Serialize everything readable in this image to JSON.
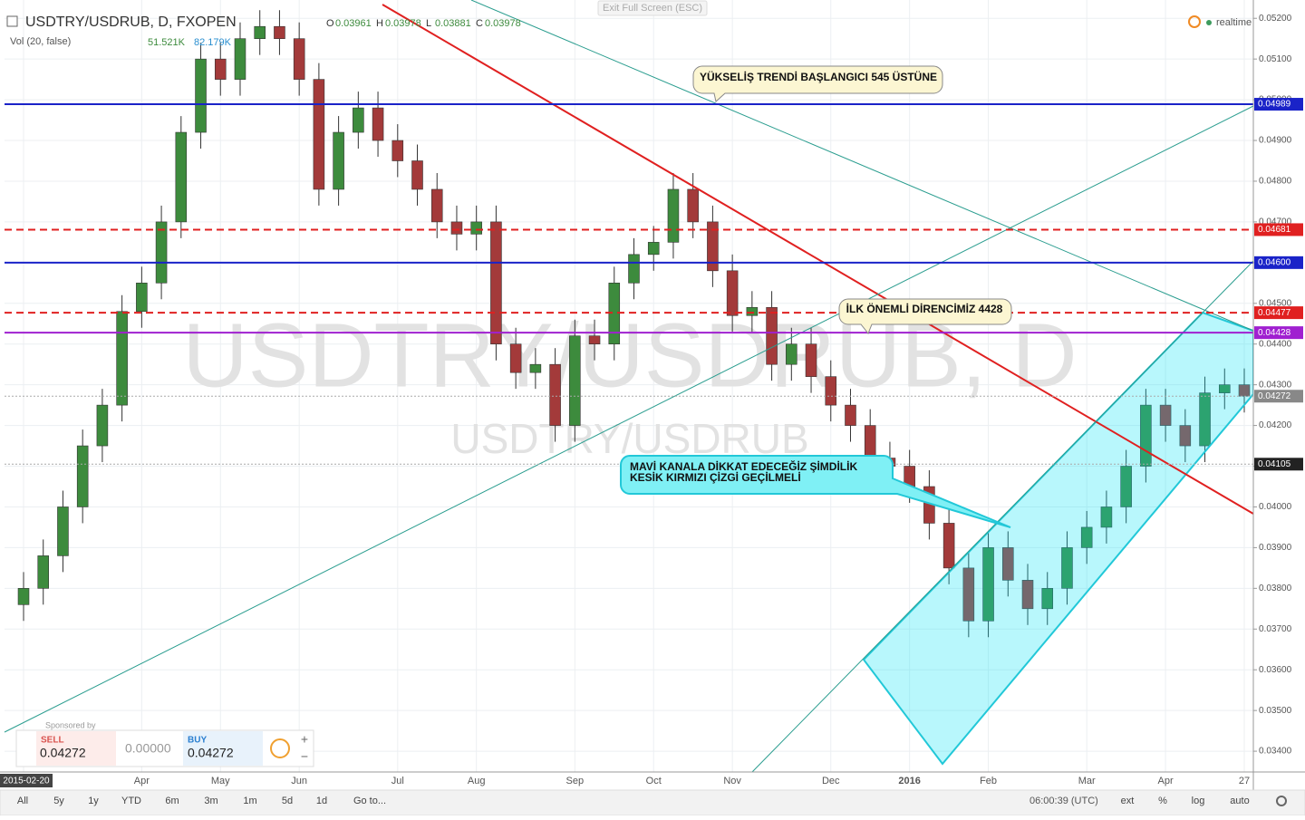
{
  "chart_data": {
    "type": "candlestick",
    "title": "USDTRY/USDRUB, D, FXOPEN",
    "ohlc_readout": [
      {
        "label": "O",
        "value": "0.03961"
      },
      {
        "label": "H",
        "value": "0.03978"
      },
      {
        "label": "L",
        "value": "0.03881"
      },
      {
        "label": "C",
        "value": "0.03978"
      }
    ],
    "volume_label": "Vol (20, false)",
    "volume_readout": [
      "51.521K",
      "82.179K"
    ],
    "watermark": "USDTRY/USDRUB, D",
    "watermark_sub": "USDTRY/USDRUB",
    "categories": [
      "2015-02-20",
      null,
      null,
      null,
      null,
      null,
      "Apr",
      null,
      null,
      null,
      "May",
      null,
      null,
      null,
      "Jun",
      null,
      null,
      null,
      null,
      "Jul",
      null,
      null,
      null,
      "Aug",
      null,
      null,
      null,
      null,
      "Sep",
      null,
      null,
      null,
      "Oct",
      null,
      null,
      null,
      "Nov",
      null,
      null,
      null,
      null,
      "Dec",
      null,
      null,
      null,
      "2016",
      null,
      null,
      null,
      "Feb",
      null,
      null,
      null,
      null,
      "Mar",
      null,
      null,
      null,
      "Apr",
      null,
      null,
      null,
      "27"
    ],
    "open": [
      0.0376,
      0.038,
      0.0388,
      0.04,
      0.0415,
      0.0425,
      0.0448,
      0.0455,
      0.047,
      0.0492,
      0.051,
      0.0505,
      0.0515,
      0.0518,
      0.0515,
      0.0505,
      0.0478,
      0.0492,
      0.0498,
      0.049,
      0.0485,
      0.0478,
      0.047,
      0.0467,
      0.047,
      0.044,
      0.0433,
      0.0435,
      0.042,
      0.0442,
      0.044,
      0.0455,
      0.0462,
      0.0465,
      0.0478,
      0.047,
      0.0458,
      0.0447,
      0.0449,
      0.0435,
      0.044,
      0.0432,
      0.0425,
      0.042,
      0.0412,
      0.041,
      0.0405,
      0.0396,
      0.0385,
      0.0372,
      0.039,
      0.0382,
      0.0375,
      0.038,
      0.039,
      0.0395,
      0.04,
      0.041,
      0.0425,
      0.042,
      0.0415,
      0.0428,
      0.043
    ],
    "high": [
      0.0384,
      0.0392,
      0.0404,
      0.0419,
      0.0429,
      0.0452,
      0.0459,
      0.0474,
      0.0496,
      0.0514,
      0.0514,
      0.0519,
      0.0522,
      0.0522,
      0.0519,
      0.0509,
      0.0496,
      0.0502,
      0.0502,
      0.0494,
      0.0489,
      0.0482,
      0.0474,
      0.0474,
      0.0474,
      0.0444,
      0.0439,
      0.0439,
      0.0446,
      0.0446,
      0.0459,
      0.0466,
      0.0469,
      0.0482,
      0.0482,
      0.0474,
      0.0462,
      0.0453,
      0.0453,
      0.0444,
      0.0444,
      0.0436,
      0.0429,
      0.0424,
      0.0416,
      0.0414,
      0.0409,
      0.04,
      0.0389,
      0.0394,
      0.0394,
      0.0386,
      0.0384,
      0.0394,
      0.0399,
      0.0404,
      0.0414,
      0.0429,
      0.0429,
      0.0424,
      0.0432,
      0.0434,
      0.0434
    ],
    "low": [
      0.0372,
      0.0376,
      0.0384,
      0.0396,
      0.0411,
      0.0421,
      0.0444,
      0.0451,
      0.0466,
      0.0488,
      0.0501,
      0.0501,
      0.0511,
      0.0511,
      0.0501,
      0.0474,
      0.0474,
      0.0488,
      0.0486,
      0.0481,
      0.0474,
      0.0466,
      0.0463,
      0.0463,
      0.0436,
      0.0429,
      0.0429,
      0.0416,
      0.0416,
      0.0436,
      0.0436,
      0.0451,
      0.0458,
      0.0461,
      0.0466,
      0.0454,
      0.0443,
      0.0443,
      0.0431,
      0.0431,
      0.0428,
      0.0421,
      0.0416,
      0.0408,
      0.0406,
      0.0401,
      0.0392,
      0.0381,
      0.0368,
      0.0368,
      0.0378,
      0.0371,
      0.0371,
      0.0376,
      0.0386,
      0.0391,
      0.0396,
      0.0406,
      0.0416,
      0.0411,
      0.0411,
      0.0424,
      0.04232
    ],
    "close": [
      0.038,
      0.0388,
      0.04,
      0.0415,
      0.0425,
      0.0448,
      0.0455,
      0.047,
      0.0492,
      0.051,
      0.0505,
      0.0515,
      0.0518,
      0.0515,
      0.0505,
      0.0478,
      0.0492,
      0.0498,
      0.049,
      0.0485,
      0.0478,
      0.047,
      0.0467,
      0.047,
      0.044,
      0.0433,
      0.0435,
      0.042,
      0.0442,
      0.044,
      0.0455,
      0.0462,
      0.0465,
      0.0478,
      0.047,
      0.0458,
      0.0447,
      0.0449,
      0.0435,
      0.044,
      0.0432,
      0.0425,
      0.042,
      0.0412,
      0.041,
      0.0405,
      0.0396,
      0.0385,
      0.0372,
      0.039,
      0.0382,
      0.0375,
      0.038,
      0.039,
      0.0395,
      0.04,
      0.041,
      0.0425,
      0.042,
      0.0415,
      0.0428,
      0.043,
      0.04272
    ],
    "up_color": "#3d8b3d",
    "down_color": "#a33a3a",
    "ylim": [
      0.03349,
      0.05245
    ],
    "yticks": [
      {
        "value": 0.034,
        "label": "0.03400"
      },
      {
        "value": 0.035,
        "label": "0.03500"
      },
      {
        "value": 0.036,
        "label": "0.03600"
      },
      {
        "value": 0.037,
        "label": "0.03700"
      },
      {
        "value": 0.038,
        "label": "0.03800"
      },
      {
        "value": 0.039,
        "label": "0.03900"
      },
      {
        "value": 0.04,
        "label": "0.04000"
      },
      {
        "value": 0.041,
        "label": "0.04100"
      },
      {
        "value": 0.042,
        "label": "0.04200"
      },
      {
        "value": 0.043,
        "label": "0.04300"
      },
      {
        "value": 0.044,
        "label": "0.04400"
      },
      {
        "value": 0.045,
        "label": "0.04500"
      },
      {
        "value": 0.046,
        "label": "0.04600"
      },
      {
        "value": 0.047,
        "label": "0.04700"
      },
      {
        "value": 0.048,
        "label": "0.04800"
      },
      {
        "value": 0.049,
        "label": "0.04900"
      },
      {
        "value": 0.05,
        "label": "0.05000"
      },
      {
        "value": 0.051,
        "label": "0.05100"
      },
      {
        "value": 0.052,
        "label": "0.05200"
      }
    ],
    "grid": true,
    "levels": [
      {
        "value": 0.04989,
        "label": "0.04989",
        "color": "#1a23c8",
        "dashed": false
      },
      {
        "value": 0.04681,
        "label": "0.04681",
        "color": "#e02020",
        "dashed": true
      },
      {
        "value": 0.046,
        "label": "0.04600",
        "color": "#1a23c8",
        "dashed": false
      },
      {
        "value": 0.04477,
        "label": "0.04477",
        "color": "#e02020",
        "dashed": true
      },
      {
        "value": 0.04428,
        "label": "0.04428",
        "color": "#a020d0",
        "dashed": false
      }
    ],
    "last_price": {
      "value": 0.04272,
      "label": "0.04272",
      "color": "#888888"
    },
    "crosshair": {
      "value": 0.04105,
      "label": "0.04105",
      "color": "#222222"
    },
    "annotations": [
      "YÜKSELİŞ TRENDİ BAŞLANGICI 545 ÜSTÜNE",
      "İLK ÖNEMLİ DİRENCİMİZ 4428",
      "MAVİ KANALA DİKKAT EDECEĞİZ ŞİMDİLİK",
      "KESİK KIRMIZI ÇİZGİ GEÇİLMELİ"
    ]
  },
  "ui": {
    "exit_fullscreen": "Exit Full Screen (ESC)",
    "realtime": "realtime",
    "trade": {
      "sponsored": "Sponsored by",
      "sell": "SELL",
      "sell_price": "0.04272",
      "spread": "0.00000",
      "buy": "BUY",
      "buy_price": "0.04272",
      "plus": "+",
      "minus": "−"
    },
    "range_buttons": [
      "All",
      "5y",
      "1y",
      "YTD",
      "6m",
      "3m",
      "1m",
      "5d",
      "1d",
      "Go to..."
    ],
    "clock": "06:00:39 (UTC)",
    "options": [
      "ext",
      "%",
      "log",
      "auto"
    ]
  }
}
